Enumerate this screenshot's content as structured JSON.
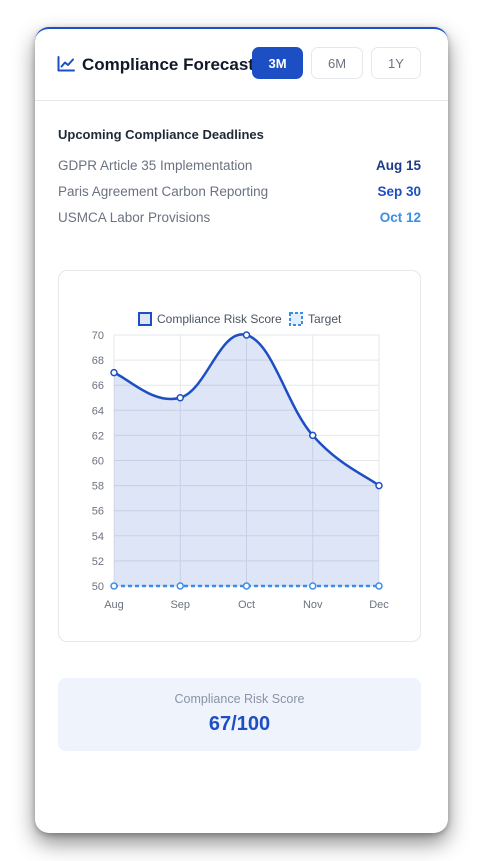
{
  "header": {
    "title": "Compliance Forecast",
    "icon": "chart-line-icon",
    "ranges": [
      {
        "label": "3M",
        "active": true
      },
      {
        "label": "6M",
        "active": false
      },
      {
        "label": "1Y",
        "active": false
      }
    ]
  },
  "deadlines": {
    "heading": "Upcoming Compliance Deadlines",
    "items": [
      {
        "name": "GDPR Article 35 Implementation",
        "date": "Aug 15",
        "color": "#1e3a8a"
      },
      {
        "name": "Paris Agreement Carbon Reporting",
        "date": "Sep 30",
        "color": "#1d4fc4"
      },
      {
        "name": "USMCA Labor Provisions",
        "date": "Oct 12",
        "color": "#3b8ee8"
      }
    ]
  },
  "chart_data": {
    "type": "line",
    "title": "",
    "xlabel": "",
    "ylabel": "",
    "categories": [
      "Aug",
      "Sep",
      "Oct",
      "Nov",
      "Dec"
    ],
    "series": [
      {
        "name": "Compliance Risk Score",
        "values": [
          67,
          65,
          70,
          62,
          58
        ],
        "color": "#1d4fc4",
        "fill": true
      },
      {
        "name": "Target",
        "values": [
          50,
          50,
          50,
          50,
          50
        ],
        "color": "#3b8ee8",
        "dashed": true
      }
    ],
    "ylim": [
      50,
      70
    ],
    "yticks": [
      50,
      52,
      54,
      56,
      58,
      60,
      62,
      64,
      66,
      68,
      70
    ],
    "grid": true,
    "legend": "top"
  },
  "score": {
    "label": "Compliance Risk Score",
    "value": "67/100"
  }
}
